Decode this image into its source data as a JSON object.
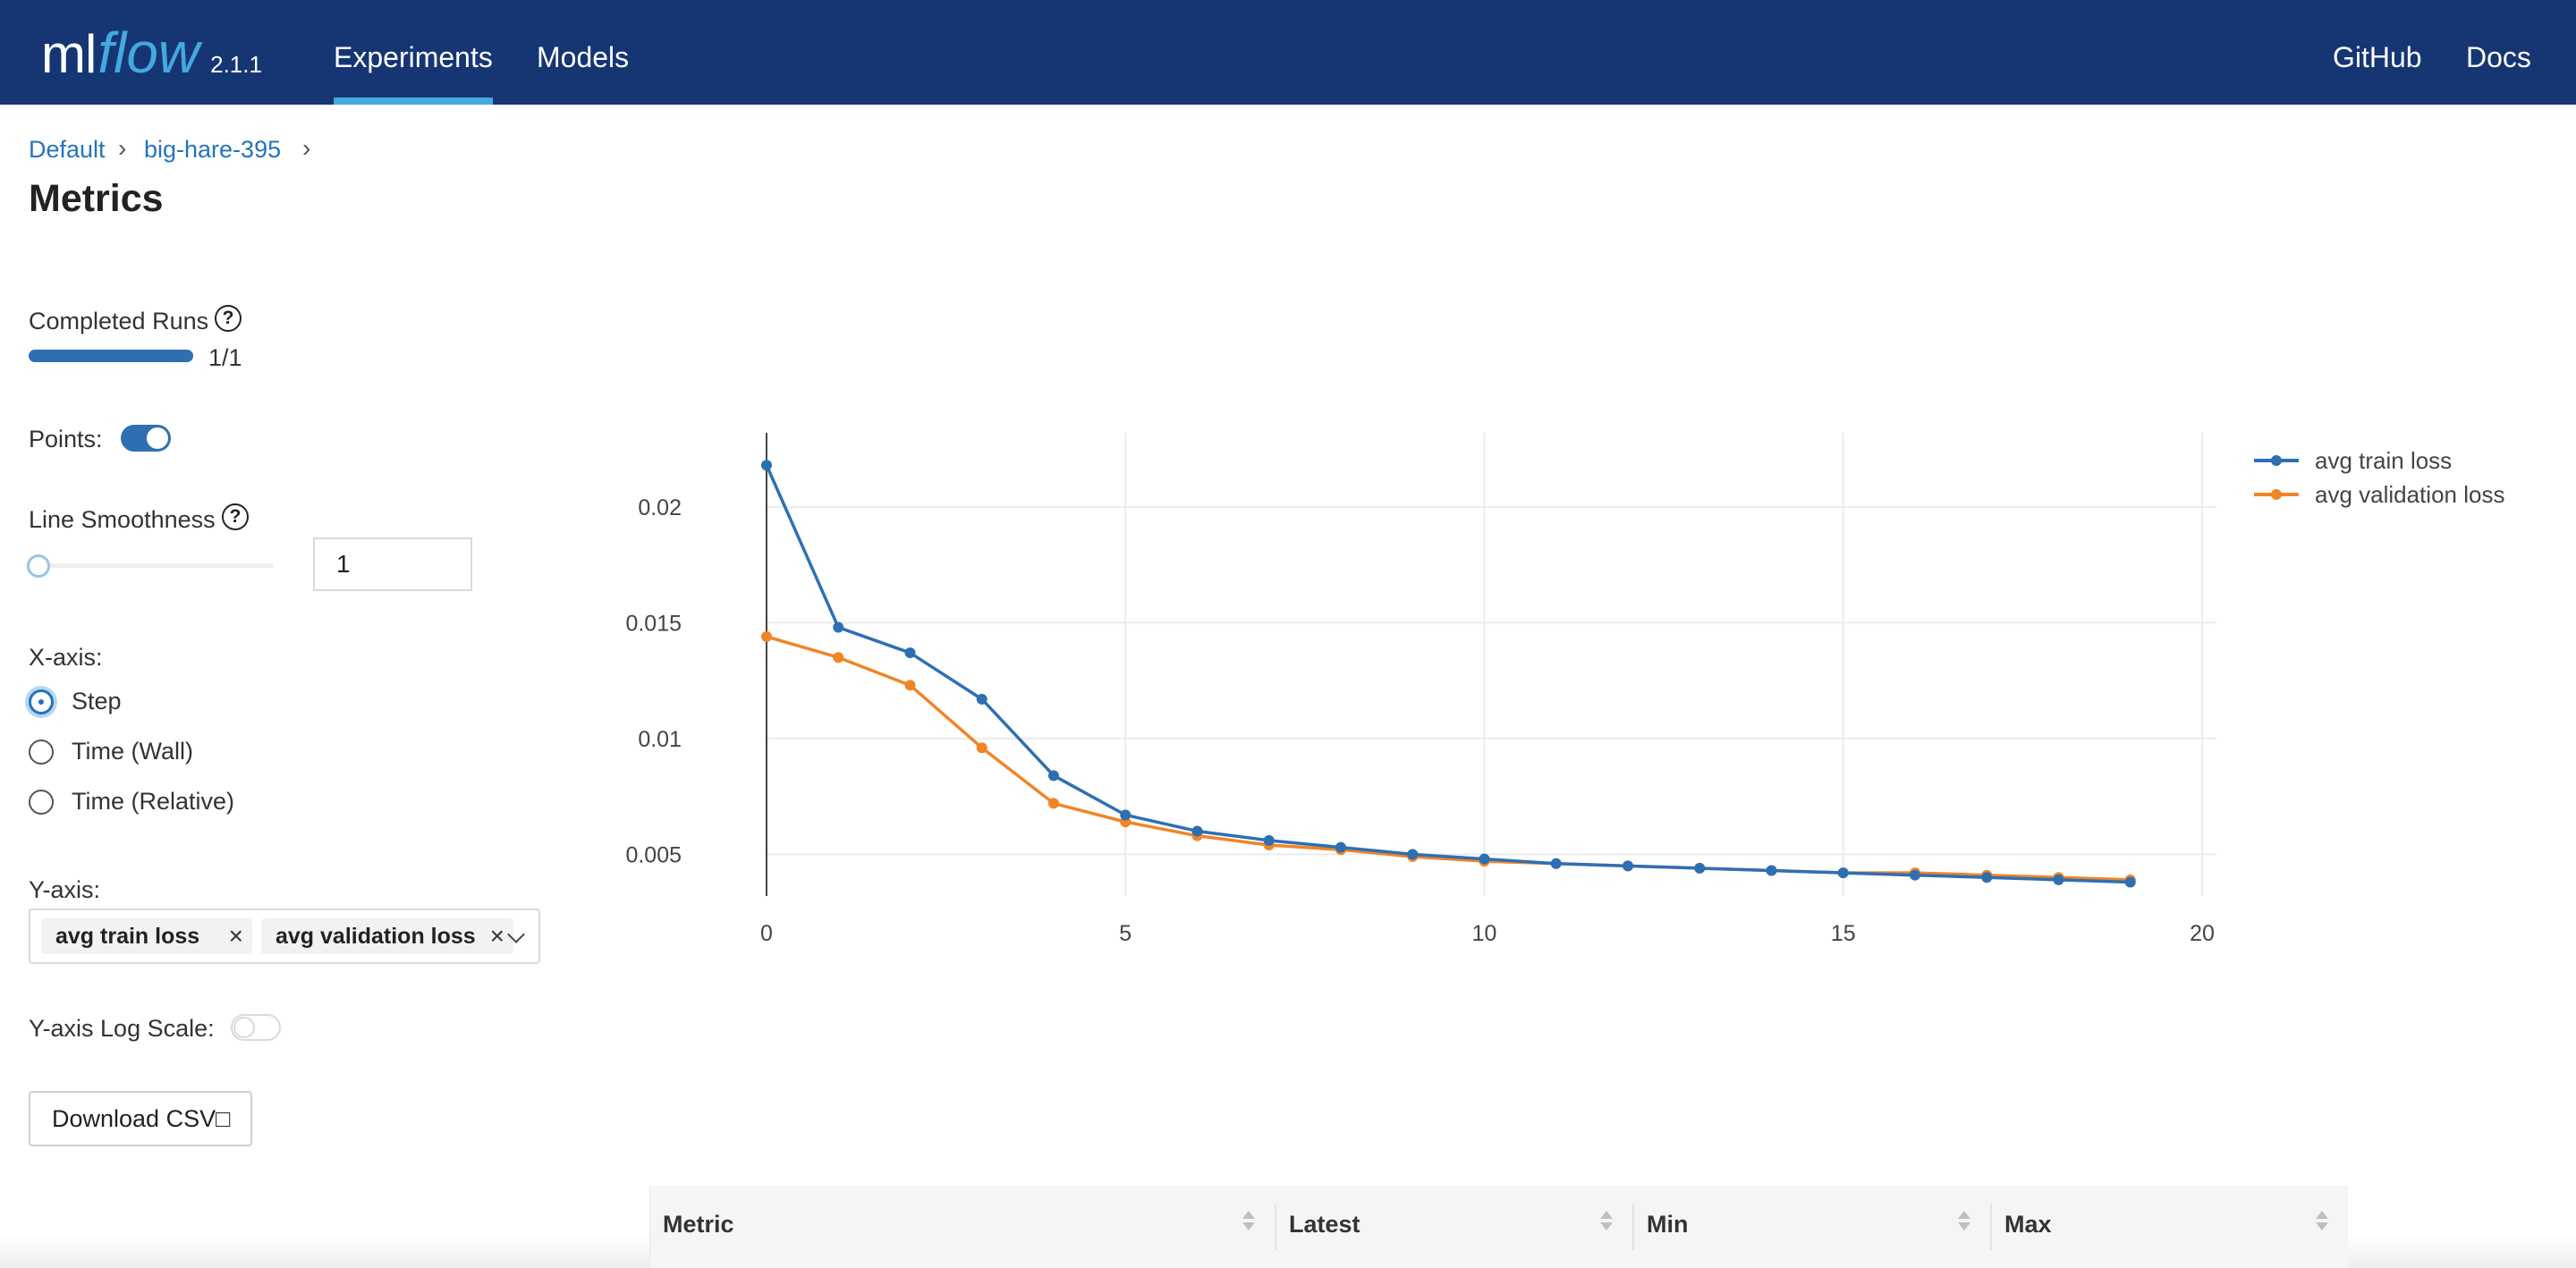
{
  "header": {
    "logo_ml": "ml",
    "logo_flow": "flow",
    "version": "2.1.1",
    "tabs": [
      {
        "label": "Experiments",
        "active": true
      },
      {
        "label": "Models",
        "active": false
      }
    ],
    "right_links": [
      "GitHub",
      "Docs"
    ],
    "bg_color": "#163673",
    "accent_color": "#43a9e0"
  },
  "breadcrumb": {
    "items": [
      "Default",
      "big-hare-395"
    ],
    "separator": "›"
  },
  "page_title": "Metrics",
  "controls": {
    "completed_runs_label": "Completed Runs",
    "completed_runs_value": "1/1",
    "completed_runs_progress": 1.0,
    "help_icon": "?",
    "points_label": "Points:",
    "points_enabled": true,
    "smoothness_label": "Line Smoothness",
    "smoothness_value": "1",
    "xaxis_label": "X-axis:",
    "xaxis_options": [
      {
        "label": "Step",
        "checked": true
      },
      {
        "label": "Time (Wall)",
        "checked": false
      },
      {
        "label": "Time (Relative)",
        "checked": false
      }
    ],
    "yaxis_label": "Y-axis:",
    "yaxis_selected": [
      "avg train loss",
      "avg validation loss"
    ],
    "tag_remove_icon": "×",
    "log_scale_label": "Y-axis Log Scale:",
    "log_scale_enabled": false,
    "download_label": "Download CSV",
    "download_icon": "□"
  },
  "chart_data": {
    "type": "line",
    "x": [
      0,
      1,
      2,
      3,
      4,
      5,
      6,
      7,
      8,
      9,
      10,
      11,
      12,
      13,
      14,
      15,
      16,
      17,
      18,
      19
    ],
    "series": [
      {
        "name": "avg train loss",
        "color": "#2e6fb3",
        "values": [
          0.0218,
          0.0148,
          0.0137,
          0.0117,
          0.0084,
          0.0067,
          0.006,
          0.0056,
          0.0053,
          0.005,
          0.0048,
          0.0046,
          0.0045,
          0.0044,
          0.0043,
          0.0042,
          0.0041,
          0.004,
          0.0039,
          0.0038
        ]
      },
      {
        "name": "avg validation loss",
        "color": "#f08526",
        "values": [
          0.0144,
          0.0135,
          0.0123,
          0.0096,
          0.0072,
          0.0064,
          0.0058,
          0.0054,
          0.0052,
          0.0049,
          0.0047,
          0.0046,
          0.0045,
          0.0044,
          0.0043,
          0.0042,
          0.0042,
          0.0041,
          0.004,
          0.0039
        ]
      }
    ],
    "xlim": [
      0,
      20
    ],
    "ylim": [
      0.0032,
      0.0232
    ],
    "xticks": [
      0,
      5,
      10,
      15,
      20
    ],
    "yticks": [
      0.005,
      0.01,
      0.015,
      0.02
    ],
    "ytick_labels": [
      "0.005",
      "0.01",
      "0.015",
      "0.02"
    ],
    "grid": true,
    "legend_position": "top-right",
    "markers": true
  },
  "table": {
    "columns": [
      "Metric",
      "Latest",
      "Min",
      "Max"
    ]
  }
}
